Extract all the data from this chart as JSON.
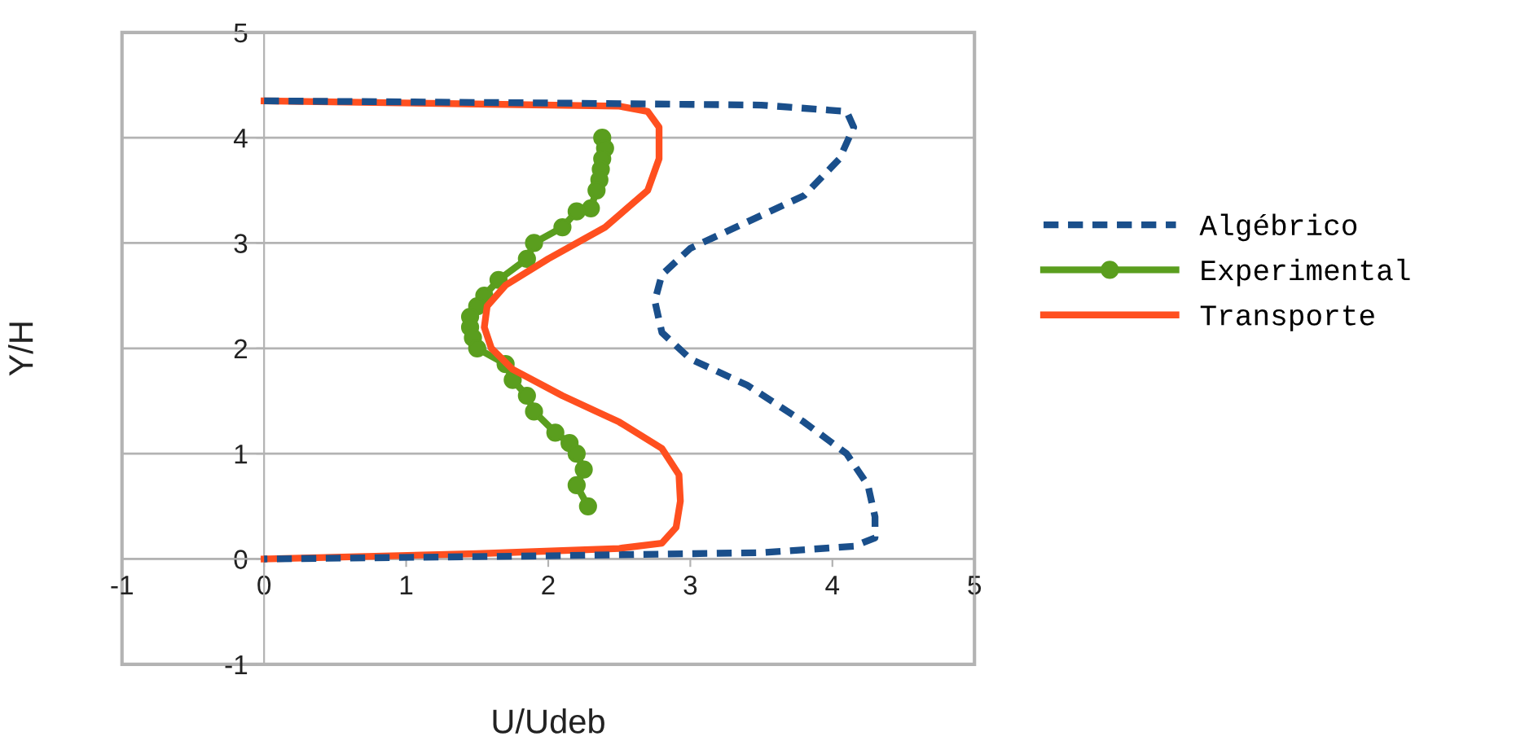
{
  "chart_data": {
    "type": "line",
    "xlabel": "U/Udeb",
    "ylabel": "Y/H",
    "xlim": [
      -1,
      5
    ],
    "ylim": [
      -1,
      5
    ],
    "xticks": [
      -1,
      0,
      1,
      2,
      3,
      4,
      5
    ],
    "yticks": [
      -1,
      0,
      1,
      2,
      3,
      4,
      5
    ],
    "grid": "y",
    "legend": "right",
    "series": [
      {
        "name": "Algébrico",
        "color": "#1a4f8b",
        "line_style": "dashed",
        "marker": "none",
        "x": [
          0,
          2,
          3.5,
          4.1,
          4.15,
          4.05,
          3.8,
          3.4,
          3.0,
          2.8,
          2.75,
          2.8,
          3.0,
          3.4,
          3.8,
          4.1,
          4.25,
          4.3,
          4.3,
          4.15,
          3.5,
          2,
          0
        ],
        "values": [
          4.35,
          4.33,
          4.31,
          4.25,
          4.1,
          3.8,
          3.45,
          3.2,
          2.95,
          2.7,
          2.45,
          2.15,
          1.9,
          1.65,
          1.3,
          1.0,
          0.7,
          0.4,
          0.2,
          0.12,
          0.06,
          0.03,
          0
        ]
      },
      {
        "name": "Experimental",
        "color": "#5a9e1e",
        "line_style": "solid",
        "marker": "circle",
        "x": [
          2.38,
          2.4,
          2.38,
          2.37,
          2.36,
          2.34,
          2.3,
          2.2,
          2.1,
          1.9,
          1.85,
          1.65,
          1.55,
          1.5,
          1.45,
          1.45,
          1.47,
          1.5,
          1.7,
          1.75,
          1.85,
          1.9,
          2.05,
          2.15,
          2.2,
          2.25,
          2.2,
          2.28
        ],
        "values": [
          4.0,
          3.9,
          3.8,
          3.7,
          3.6,
          3.5,
          3.33,
          3.3,
          3.15,
          3.0,
          2.85,
          2.65,
          2.5,
          2.4,
          2.3,
          2.2,
          2.1,
          2.0,
          1.85,
          1.7,
          1.55,
          1.4,
          1.2,
          1.1,
          1.0,
          0.85,
          0.7,
          0.5
        ]
      },
      {
        "name": "Transporte",
        "color": "#ff4f1f",
        "line_style": "solid",
        "marker": "none",
        "x": [
          0,
          1.5,
          2.5,
          2.7,
          2.78,
          2.78,
          2.7,
          2.4,
          2.0,
          1.7,
          1.57,
          1.55,
          1.6,
          1.75,
          2.1,
          2.5,
          2.8,
          2.92,
          2.93,
          2.9,
          2.8,
          2.5,
          1.5,
          0
        ],
        "values": [
          4.35,
          4.32,
          4.3,
          4.25,
          4.1,
          3.8,
          3.5,
          3.15,
          2.85,
          2.6,
          2.4,
          2.2,
          2.0,
          1.8,
          1.55,
          1.3,
          1.05,
          0.8,
          0.55,
          0.3,
          0.15,
          0.1,
          0.05,
          0
        ]
      }
    ]
  }
}
